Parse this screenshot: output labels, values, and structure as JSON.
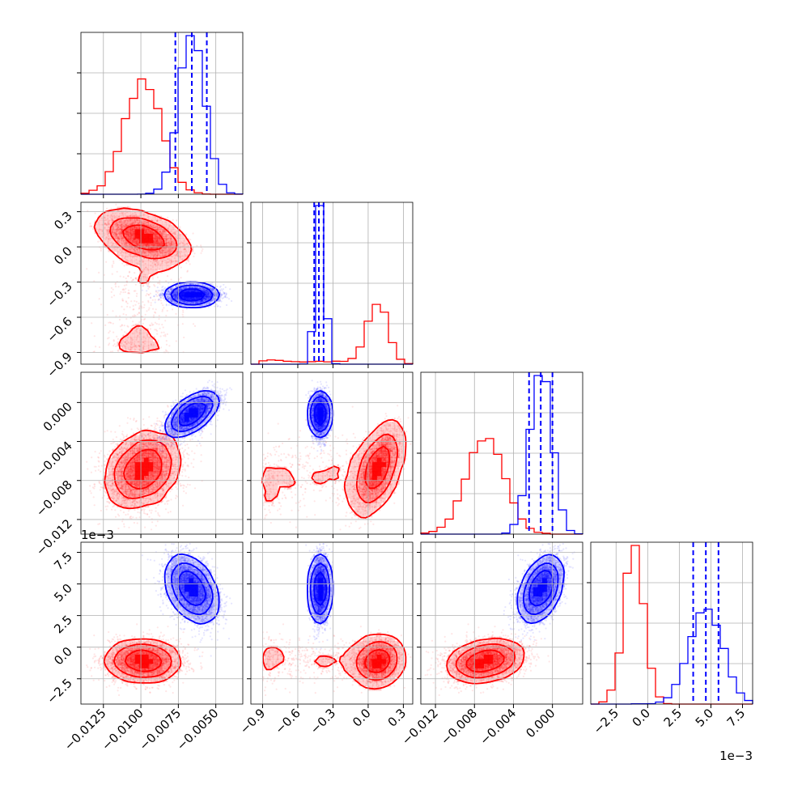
{
  "chart_data": {
    "type": "corner-plot",
    "parameters": 4,
    "grid": true,
    "colors": {
      "series_a": "#ff0000",
      "series_b": "#0000ff"
    },
    "series": [
      {
        "color": "#ff0000",
        "means": [
          -0.0098,
          0.08,
          -0.0067,
          -0.0011
        ],
        "sds": [
          0.0012,
          0.085,
          0.0019,
          0.00075
        ],
        "corr": {
          "1,0": -0.45,
          "2,0": 0.3,
          "2,1": 0.55,
          "3,0": 0.0,
          "3,1": 0.1,
          "3,2": 0.3
        },
        "tail": {
          "param": 1,
          "from": -0.9,
          "to": 0.0,
          "drop2": -0.0015,
          "drop3": 0.0
        }
      },
      {
        "color": "#0000ff",
        "means": [
          -0.0066,
          -0.41,
          -0.0012,
          0.0046
        ],
        "sds": [
          0.00085,
          0.035,
          0.0011,
          0.00085
        ],
        "corr": {
          "1,0": 0.0,
          "2,0": 0.65,
          "2,1": 0.0,
          "3,0": -0.6,
          "3,1": 0.0,
          "3,2": 0.7
        },
        "quantiles": [
          [
            -0.0077,
            -0.0066,
            -0.0056
          ],
          [
            -0.46,
            -0.42,
            -0.38
          ],
          [
            -0.0024,
            -0.0012,
            0.0
          ],
          [
            0.0036,
            0.0046,
            0.0056
          ]
        ]
      }
    ],
    "axes": [
      {
        "range": [
          -0.014,
          -0.0032
        ],
        "ticks": [
          -0.0125,
          -0.01,
          -0.0075,
          -0.005
        ],
        "tick_labels": [
          "−0.0125",
          "−0.0100",
          "−0.0075",
          "−0.0050"
        ],
        "offset": ""
      },
      {
        "range": [
          -1.0,
          0.38
        ],
        "ticks": [
          -0.9,
          -0.6,
          -0.3,
          0.0,
          0.3
        ],
        "tick_labels": [
          "−0.9",
          "−0.6",
          "−0.3",
          "0.0",
          "0.3"
        ],
        "offset": ""
      },
      {
        "range": [
          -0.0135,
          0.0031
        ],
        "ticks": [
          -0.012,
          -0.008,
          -0.004,
          0.0
        ],
        "tick_labels": [
          "−0.012",
          "−0.008",
          "−0.004",
          "0.000"
        ],
        "offset": ""
      },
      {
        "range": [
          -0.0045,
          0.0083
        ],
        "ticks": [
          -0.0025,
          0.0,
          0.0025,
          0.005,
          0.0075
        ],
        "tick_labels": [
          "−2.5",
          "0.0",
          "2.5",
          "5.0",
          "7.5"
        ],
        "offset": "1e−3"
      }
    ]
  }
}
